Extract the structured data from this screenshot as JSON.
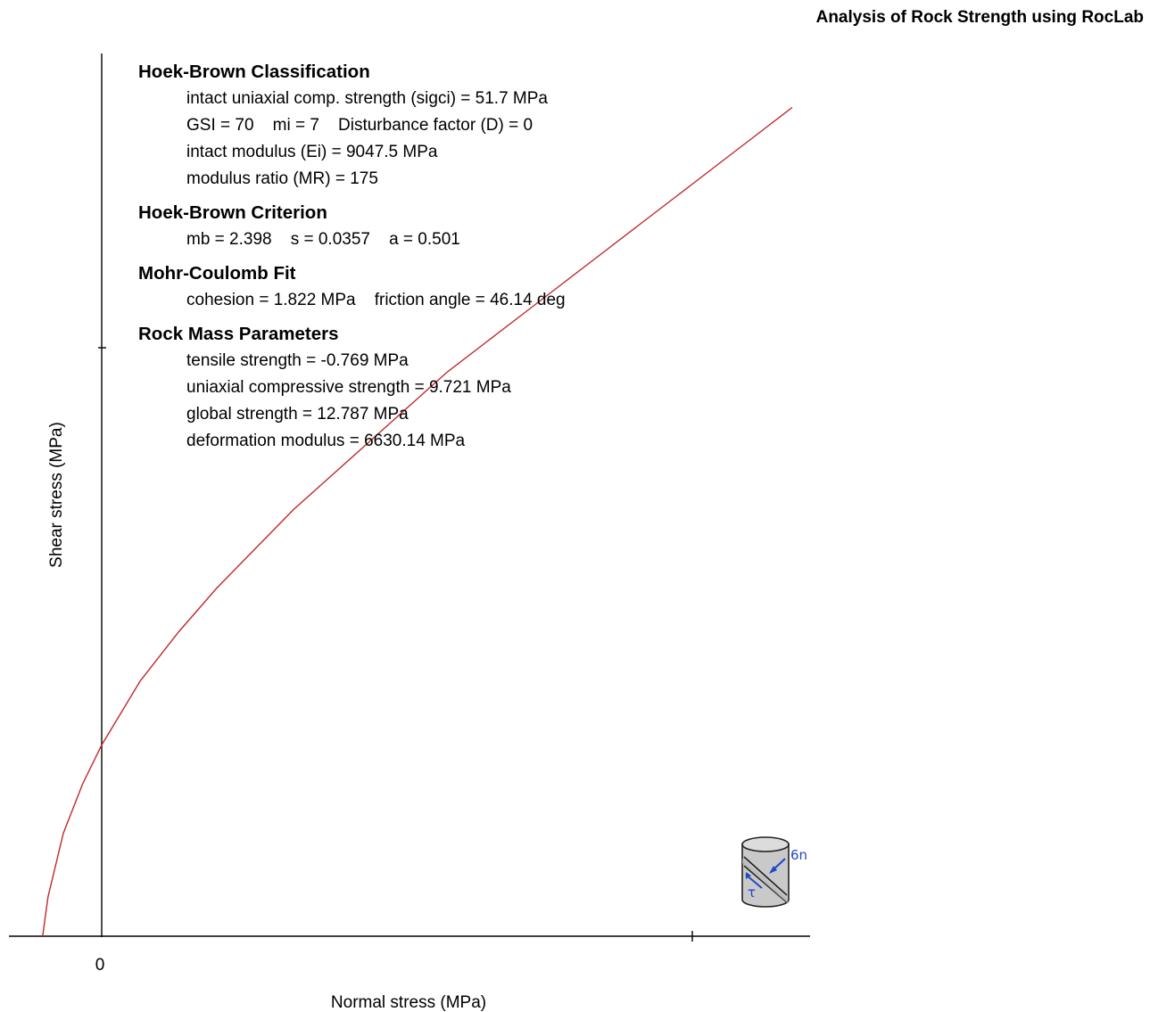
{
  "page_title": "Analysis of Rock Strength using RocLab",
  "info_sections": [
    {
      "heading": "Hoek-Brown Classification",
      "lines": [
        "intact uniaxial comp. strength (sigci) = 51.7 MPa",
        "GSI = 70    mi = 7    Disturbance factor (D) = 0",
        "intact modulus (Ei) = 9047.5 MPa",
        "modulus ratio (MR) = 175"
      ]
    },
    {
      "heading": "Hoek-Brown Criterion",
      "lines": [
        "mb = 2.398    s = 0.0357    a = 0.501"
      ]
    },
    {
      "heading": "Mohr-Coulomb Fit",
      "lines": [
        "cohesion = 1.822 MPa    friction angle = 46.14 deg"
      ]
    },
    {
      "heading": "Rock Mass Parameters",
      "lines": [
        "tensile strength = -0.769 MPa",
        "uniaxial compressive strength = 9.721 MPa",
        "global strength = 12.787 MPa",
        "deformation modulus = 6630.14 MPa"
      ]
    }
  ],
  "chart_data": {
    "type": "line",
    "xlabel": "Normal stress (MPa)",
    "ylabel": "Shear stress (MPa)",
    "x_tick_labels": [
      "0"
    ],
    "grid": false,
    "series": [
      {
        "color": "#c0282d",
        "points": [
          [
            -0.77,
            0.0
          ],
          [
            -0.7,
            0.4
          ],
          [
            -0.5,
            1.05
          ],
          [
            -0.25,
            1.55
          ],
          [
            0.0,
            1.95
          ],
          [
            0.5,
            2.6
          ],
          [
            1.0,
            3.1
          ],
          [
            1.5,
            3.55
          ],
          [
            2.0,
            3.95
          ],
          [
            2.5,
            4.35
          ],
          [
            3.0,
            4.7
          ],
          [
            3.5,
            5.05
          ],
          [
            4.0,
            5.4
          ],
          [
            4.5,
            5.75
          ],
          [
            5.0,
            6.05
          ],
          [
            5.5,
            6.35
          ],
          [
            6.0,
            6.65
          ],
          [
            6.5,
            6.95
          ],
          [
            7.0,
            7.25
          ],
          [
            7.5,
            7.55
          ],
          [
            8.0,
            7.85
          ],
          [
            8.5,
            8.15
          ],
          [
            9.0,
            8.45
          ]
        ]
      }
    ]
  },
  "icon": {
    "name": "rock-sample-cylinder-icon",
    "sigma_label": "6n",
    "tau_label": "τ"
  }
}
